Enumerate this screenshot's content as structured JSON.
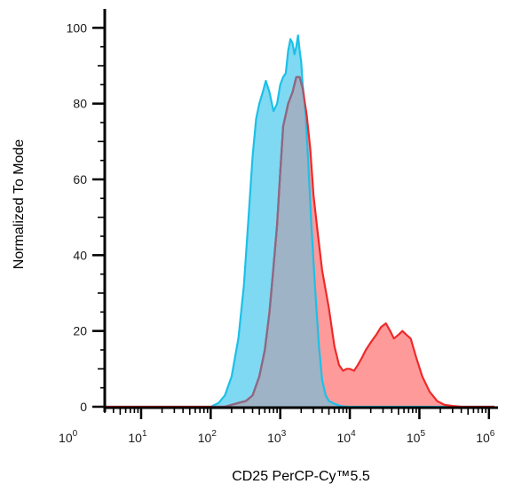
{
  "chart_data": {
    "type": "area",
    "title": "",
    "xlabel": "CD25 PerCP-Cy™5.5",
    "ylabel": "Normalized To Mode",
    "x_scale": "log",
    "xlim": [
      3,
      1200000
    ],
    "ylim": [
      0,
      105
    ],
    "y_ticks": [
      0,
      20,
      40,
      60,
      80,
      100
    ],
    "x_ticks": [
      {
        "base": "10",
        "exp": "0",
        "value": 1
      },
      {
        "base": "10",
        "exp": "1",
        "value": 10
      },
      {
        "base": "10",
        "exp": "2",
        "value": 100
      },
      {
        "base": "10",
        "exp": "3",
        "value": 1000
      },
      {
        "base": "10",
        "exp": "4",
        "value": 10000
      },
      {
        "base": "10",
        "exp": "5",
        "value": 100000
      },
      {
        "base": "10",
        "exp": "6",
        "value": 1000000
      }
    ],
    "grid": false,
    "series": [
      {
        "fill": "#ff9a9a",
        "stroke": "#ee2a2a",
        "x": [
          3,
          160,
          200,
          250,
          320,
          400,
          500,
          600,
          700,
          800,
          900,
          1000,
          1100,
          1300,
          1500,
          1700,
          1900,
          2100,
          2400,
          2700,
          3000,
          3500,
          4000,
          5000,
          6000,
          7000,
          8000,
          9000,
          10000,
          11500,
          13000,
          15000,
          17000,
          20000,
          24000,
          28000,
          33000,
          38000,
          43000,
          50000,
          57000,
          65000,
          75000,
          90000,
          110000,
          140000,
          180000,
          230000,
          300000,
          400000,
          1200000
        ],
        "y": [
          0,
          0,
          0.5,
          1,
          1.5,
          3,
          8,
          15,
          25,
          37,
          48,
          62,
          74,
          80,
          83,
          87,
          87,
          84,
          77,
          68,
          56,
          45,
          36,
          26,
          16,
          11,
          9.5,
          10,
          10,
          9.5,
          11,
          13,
          15,
          17,
          19,
          21,
          22,
          20,
          18,
          19,
          20,
          19,
          18,
          13,
          8,
          4,
          1.5,
          0.5,
          0.2,
          0,
          0
        ]
      },
      {
        "fill": "#7fd9f2",
        "stroke": "#1cc0e8",
        "x": [
          3,
          100,
          130,
          160,
          200,
          250,
          300,
          350,
          400,
          450,
          500,
          560,
          620,
          700,
          800,
          900,
          1000,
          1100,
          1200,
          1300,
          1400,
          1500,
          1600,
          1700,
          1800,
          1900,
          2000,
          2100,
          2300,
          2500,
          2800,
          3200,
          3600,
          4000,
          4500,
          5000,
          6000,
          7000,
          8000,
          10000,
          1200000
        ],
        "y": [
          0,
          0,
          1,
          3,
          8,
          18,
          32,
          50,
          66,
          76,
          80,
          83,
          86,
          83,
          78,
          80,
          85,
          87,
          88,
          94,
          97,
          96,
          93,
          95,
          98,
          94,
          91,
          85,
          78,
          66,
          48,
          30,
          16,
          7,
          3,
          1.5,
          0.8,
          0.3,
          0.1,
          0,
          0
        ]
      }
    ],
    "overlap_fill": "#9eb3c5",
    "overlap_stroke": "#8a6a86"
  }
}
